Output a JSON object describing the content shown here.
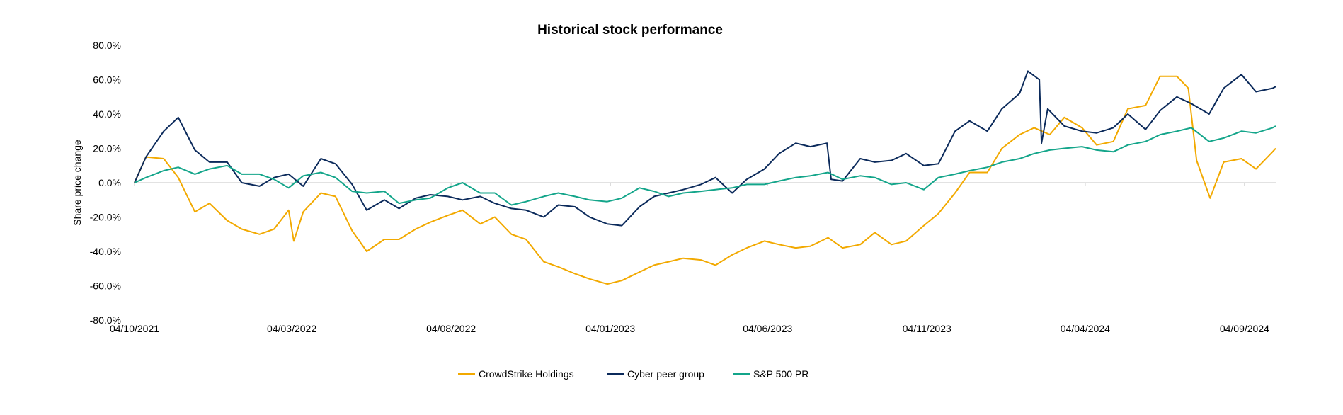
{
  "chart_data": {
    "type": "line",
    "title": "Historical stock performance",
    "xlabel": "",
    "ylabel": "Share price change",
    "ylim": [
      -80,
      80
    ],
    "y_ticks": [
      "80.0%",
      "60.0%",
      "40.0%",
      "20.0%",
      "0.0%",
      "-20.0%",
      "-40.0%",
      "-60.0%",
      "-80.0%"
    ],
    "y_tick_values": [
      80,
      60,
      40,
      20,
      0,
      -20,
      -40,
      -60,
      -80
    ],
    "x_range": [
      "2021-10-04",
      "2024-10-04"
    ],
    "x_ticks": [
      "04/10/2021",
      "04/03/2022",
      "04/08/2022",
      "04/01/2023",
      "04/06/2023",
      "04/11/2023",
      "04/04/2024",
      "04/09/2024"
    ],
    "x_tick_dates": [
      "2021-10-04",
      "2022-03-04",
      "2022-08-04",
      "2023-01-04",
      "2023-06-04",
      "2023-11-04",
      "2024-04-04",
      "2024-09-04"
    ],
    "grid": false,
    "zero_line": true,
    "legend_position": "bottom",
    "series": [
      {
        "name": "CrowdStrike Holdings",
        "color": "#F2A900",
        "points": [
          [
            "2021-10-04",
            0
          ],
          [
            "2021-10-15",
            15
          ],
          [
            "2021-11-01",
            14
          ],
          [
            "2021-11-15",
            3
          ],
          [
            "2021-12-01",
            -17
          ],
          [
            "2021-12-15",
            -12
          ],
          [
            "2022-01-01",
            -22
          ],
          [
            "2022-01-15",
            -27
          ],
          [
            "2022-02-01",
            -30
          ],
          [
            "2022-02-15",
            -27
          ],
          [
            "2022-03-01",
            -16
          ],
          [
            "2022-03-06",
            -34
          ],
          [
            "2022-03-15",
            -17
          ],
          [
            "2022-04-01",
            -6
          ],
          [
            "2022-04-15",
            -8
          ],
          [
            "2022-05-01",
            -28
          ],
          [
            "2022-05-15",
            -40
          ],
          [
            "2022-06-01",
            -33
          ],
          [
            "2022-06-15",
            -33
          ],
          [
            "2022-07-01",
            -27
          ],
          [
            "2022-07-15",
            -23
          ],
          [
            "2022-08-01",
            -19
          ],
          [
            "2022-08-15",
            -16
          ],
          [
            "2022-09-01",
            -24
          ],
          [
            "2022-09-15",
            -20
          ],
          [
            "2022-10-01",
            -30
          ],
          [
            "2022-10-15",
            -33
          ],
          [
            "2022-11-01",
            -46
          ],
          [
            "2022-11-15",
            -49
          ],
          [
            "2022-12-01",
            -53
          ],
          [
            "2022-12-15",
            -56
          ],
          [
            "2023-01-01",
            -59
          ],
          [
            "2023-01-15",
            -57
          ],
          [
            "2023-02-01",
            -52
          ],
          [
            "2023-02-15",
            -48
          ],
          [
            "2023-03-01",
            -46
          ],
          [
            "2023-03-15",
            -44
          ],
          [
            "2023-04-01",
            -45
          ],
          [
            "2023-04-15",
            -48
          ],
          [
            "2023-05-01",
            -42
          ],
          [
            "2023-05-15",
            -38
          ],
          [
            "2023-06-01",
            -34
          ],
          [
            "2023-06-15",
            -36
          ],
          [
            "2023-07-01",
            -38
          ],
          [
            "2023-07-15",
            -37
          ],
          [
            "2023-08-01",
            -32
          ],
          [
            "2023-08-15",
            -38
          ],
          [
            "2023-09-01",
            -36
          ],
          [
            "2023-09-15",
            -29
          ],
          [
            "2023-10-01",
            -36
          ],
          [
            "2023-10-15",
            -34
          ],
          [
            "2023-11-01",
            -25
          ],
          [
            "2023-11-15",
            -18
          ],
          [
            "2023-12-01",
            -6
          ],
          [
            "2023-12-15",
            6
          ],
          [
            "2024-01-01",
            6
          ],
          [
            "2024-01-15",
            20
          ],
          [
            "2024-02-01",
            28
          ],
          [
            "2024-02-15",
            32
          ],
          [
            "2024-03-01",
            28
          ],
          [
            "2024-03-15",
            38
          ],
          [
            "2024-04-01",
            32
          ],
          [
            "2024-04-15",
            22
          ],
          [
            "2024-05-01",
            24
          ],
          [
            "2024-05-15",
            43
          ],
          [
            "2024-06-01",
            45
          ],
          [
            "2024-06-15",
            62
          ],
          [
            "2024-07-01",
            62
          ],
          [
            "2024-07-12",
            55
          ],
          [
            "2024-07-20",
            13
          ],
          [
            "2024-08-02",
            -9
          ],
          [
            "2024-08-15",
            12
          ],
          [
            "2024-09-01",
            14
          ],
          [
            "2024-09-15",
            8
          ],
          [
            "2024-10-01",
            18
          ],
          [
            "2024-10-04",
            20
          ]
        ]
      },
      {
        "name": "Cyber peer group",
        "color": "#0B2A5B",
        "points": [
          [
            "2021-10-04",
            0
          ],
          [
            "2021-10-15",
            15
          ],
          [
            "2021-11-01",
            30
          ],
          [
            "2021-11-15",
            38
          ],
          [
            "2021-12-01",
            19
          ],
          [
            "2021-12-15",
            12
          ],
          [
            "2022-01-01",
            12
          ],
          [
            "2022-01-15",
            0
          ],
          [
            "2022-02-01",
            -2
          ],
          [
            "2022-02-15",
            3
          ],
          [
            "2022-03-01",
            5
          ],
          [
            "2022-03-15",
            -2
          ],
          [
            "2022-04-01",
            14
          ],
          [
            "2022-04-15",
            11
          ],
          [
            "2022-05-01",
            -1
          ],
          [
            "2022-05-15",
            -16
          ],
          [
            "2022-06-01",
            -10
          ],
          [
            "2022-06-15",
            -15
          ],
          [
            "2022-07-01",
            -9
          ],
          [
            "2022-07-15",
            -7
          ],
          [
            "2022-08-01",
            -8
          ],
          [
            "2022-08-15",
            -10
          ],
          [
            "2022-09-01",
            -8
          ],
          [
            "2022-09-15",
            -12
          ],
          [
            "2022-10-01",
            -15
          ],
          [
            "2022-10-15",
            -16
          ],
          [
            "2022-11-01",
            -20
          ],
          [
            "2022-11-15",
            -13
          ],
          [
            "2022-12-01",
            -14
          ],
          [
            "2022-12-15",
            -20
          ],
          [
            "2023-01-01",
            -24
          ],
          [
            "2023-01-15",
            -25
          ],
          [
            "2023-02-01",
            -14
          ],
          [
            "2023-02-15",
            -8
          ],
          [
            "2023-03-01",
            -6
          ],
          [
            "2023-03-15",
            -4
          ],
          [
            "2023-04-01",
            -1
          ],
          [
            "2023-04-15",
            3
          ],
          [
            "2023-05-01",
            -6
          ],
          [
            "2023-05-15",
            2
          ],
          [
            "2023-06-01",
            8
          ],
          [
            "2023-06-15",
            17
          ],
          [
            "2023-07-01",
            23
          ],
          [
            "2023-07-15",
            21
          ],
          [
            "2023-07-31",
            23
          ],
          [
            "2023-08-04",
            2
          ],
          [
            "2023-08-15",
            1
          ],
          [
            "2023-09-01",
            14
          ],
          [
            "2023-09-15",
            12
          ],
          [
            "2023-10-01",
            13
          ],
          [
            "2023-10-15",
            17
          ],
          [
            "2023-11-01",
            10
          ],
          [
            "2023-11-15",
            11
          ],
          [
            "2023-12-01",
            30
          ],
          [
            "2023-12-15",
            36
          ],
          [
            "2024-01-01",
            30
          ],
          [
            "2024-01-15",
            43
          ],
          [
            "2024-02-01",
            52
          ],
          [
            "2024-02-09",
            65
          ],
          [
            "2024-02-20",
            60
          ],
          [
            "2024-02-22",
            23
          ],
          [
            "2024-02-28",
            43
          ],
          [
            "2024-03-15",
            33
          ],
          [
            "2024-04-01",
            30
          ],
          [
            "2024-04-15",
            29
          ],
          [
            "2024-05-01",
            32
          ],
          [
            "2024-05-15",
            40
          ],
          [
            "2024-06-01",
            31
          ],
          [
            "2024-06-15",
            42
          ],
          [
            "2024-07-01",
            50
          ],
          [
            "2024-07-15",
            46
          ],
          [
            "2024-08-01",
            40
          ],
          [
            "2024-08-15",
            55
          ],
          [
            "2024-09-01",
            63
          ],
          [
            "2024-09-15",
            53
          ],
          [
            "2024-10-01",
            55
          ],
          [
            "2024-10-04",
            56
          ]
        ]
      },
      {
        "name": "S&P 500 PR",
        "color": "#13A58A",
        "points": [
          [
            "2021-10-04",
            0
          ],
          [
            "2021-10-15",
            3
          ],
          [
            "2021-11-01",
            7
          ],
          [
            "2021-11-15",
            9
          ],
          [
            "2021-12-01",
            5
          ],
          [
            "2021-12-15",
            8
          ],
          [
            "2022-01-01",
            10
          ],
          [
            "2022-01-15",
            5
          ],
          [
            "2022-02-01",
            5
          ],
          [
            "2022-02-15",
            2
          ],
          [
            "2022-03-01",
            -3
          ],
          [
            "2022-03-15",
            4
          ],
          [
            "2022-04-01",
            6
          ],
          [
            "2022-04-15",
            3
          ],
          [
            "2022-05-01",
            -5
          ],
          [
            "2022-05-15",
            -6
          ],
          [
            "2022-06-01",
            -5
          ],
          [
            "2022-06-15",
            -12
          ],
          [
            "2022-07-01",
            -10
          ],
          [
            "2022-07-15",
            -9
          ],
          [
            "2022-08-01",
            -3
          ],
          [
            "2022-08-15",
            0
          ],
          [
            "2022-09-01",
            -6
          ],
          [
            "2022-09-15",
            -6
          ],
          [
            "2022-10-01",
            -13
          ],
          [
            "2022-10-15",
            -11
          ],
          [
            "2022-11-01",
            -8
          ],
          [
            "2022-11-15",
            -6
          ],
          [
            "2022-12-01",
            -8
          ],
          [
            "2022-12-15",
            -10
          ],
          [
            "2023-01-01",
            -11
          ],
          [
            "2023-01-15",
            -9
          ],
          [
            "2023-02-01",
            -3
          ],
          [
            "2023-02-15",
            -5
          ],
          [
            "2023-03-01",
            -8
          ],
          [
            "2023-03-15",
            -6
          ],
          [
            "2023-04-01",
            -5
          ],
          [
            "2023-04-15",
            -4
          ],
          [
            "2023-05-01",
            -3
          ],
          [
            "2023-05-15",
            -1
          ],
          [
            "2023-06-01",
            -1
          ],
          [
            "2023-06-15",
            1
          ],
          [
            "2023-07-01",
            3
          ],
          [
            "2023-07-15",
            4
          ],
          [
            "2023-08-01",
            6
          ],
          [
            "2023-08-15",
            2
          ],
          [
            "2023-09-01",
            4
          ],
          [
            "2023-09-15",
            3
          ],
          [
            "2023-10-01",
            -1
          ],
          [
            "2023-10-15",
            0
          ],
          [
            "2023-11-01",
            -4
          ],
          [
            "2023-11-15",
            3
          ],
          [
            "2023-12-01",
            5
          ],
          [
            "2023-12-15",
            7
          ],
          [
            "2024-01-01",
            9
          ],
          [
            "2024-01-15",
            12
          ],
          [
            "2024-02-01",
            14
          ],
          [
            "2024-02-15",
            17
          ],
          [
            "2024-03-01",
            19
          ],
          [
            "2024-03-15",
            20
          ],
          [
            "2024-04-01",
            21
          ],
          [
            "2024-04-15",
            19
          ],
          [
            "2024-05-01",
            18
          ],
          [
            "2024-05-15",
            22
          ],
          [
            "2024-06-01",
            24
          ],
          [
            "2024-06-15",
            28
          ],
          [
            "2024-07-01",
            30
          ],
          [
            "2024-07-15",
            32
          ],
          [
            "2024-08-01",
            24
          ],
          [
            "2024-08-15",
            26
          ],
          [
            "2024-09-01",
            30
          ],
          [
            "2024-09-15",
            29
          ],
          [
            "2024-10-01",
            32
          ],
          [
            "2024-10-04",
            33
          ]
        ]
      }
    ]
  }
}
